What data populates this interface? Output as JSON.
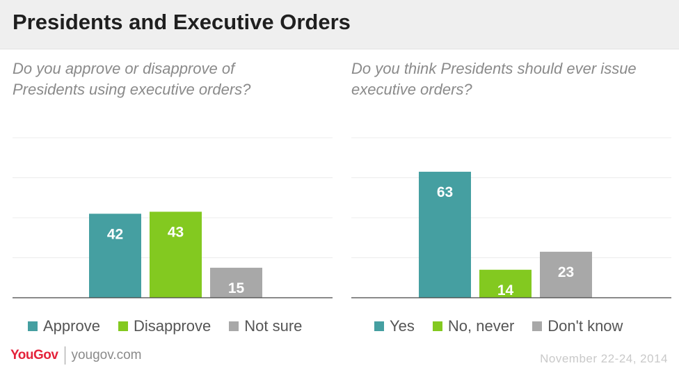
{
  "title": "Presidents and Executive Orders",
  "colors": {
    "teal": "#459fa1",
    "green": "#83c920",
    "gray": "#a8a8a8",
    "grid": "#ececec",
    "axis": "#444444"
  },
  "chart_data": [
    {
      "type": "bar",
      "question": "Do you approve or disapprove of Presidents using executive orders?",
      "categories": [
        "Approve",
        "Disapprove",
        "Not sure"
      ],
      "values": [
        42,
        43,
        15
      ],
      "bar_colors": [
        "#459fa1",
        "#83c920",
        "#a8a8a8"
      ],
      "ylim": [
        0,
        80
      ],
      "grid": true
    },
    {
      "type": "bar",
      "question": "Do you think Presidents should ever issue executive orders?",
      "categories": [
        "Yes",
        "No, never",
        "Don't know"
      ],
      "values": [
        63,
        14,
        23
      ],
      "bar_colors": [
        "#459fa1",
        "#83c920",
        "#a8a8a8"
      ],
      "ylim": [
        0,
        80
      ],
      "grid": true
    }
  ],
  "footer": {
    "logo": "YouGov",
    "url": "yougov.com",
    "date": "November 22-24, 2014"
  }
}
